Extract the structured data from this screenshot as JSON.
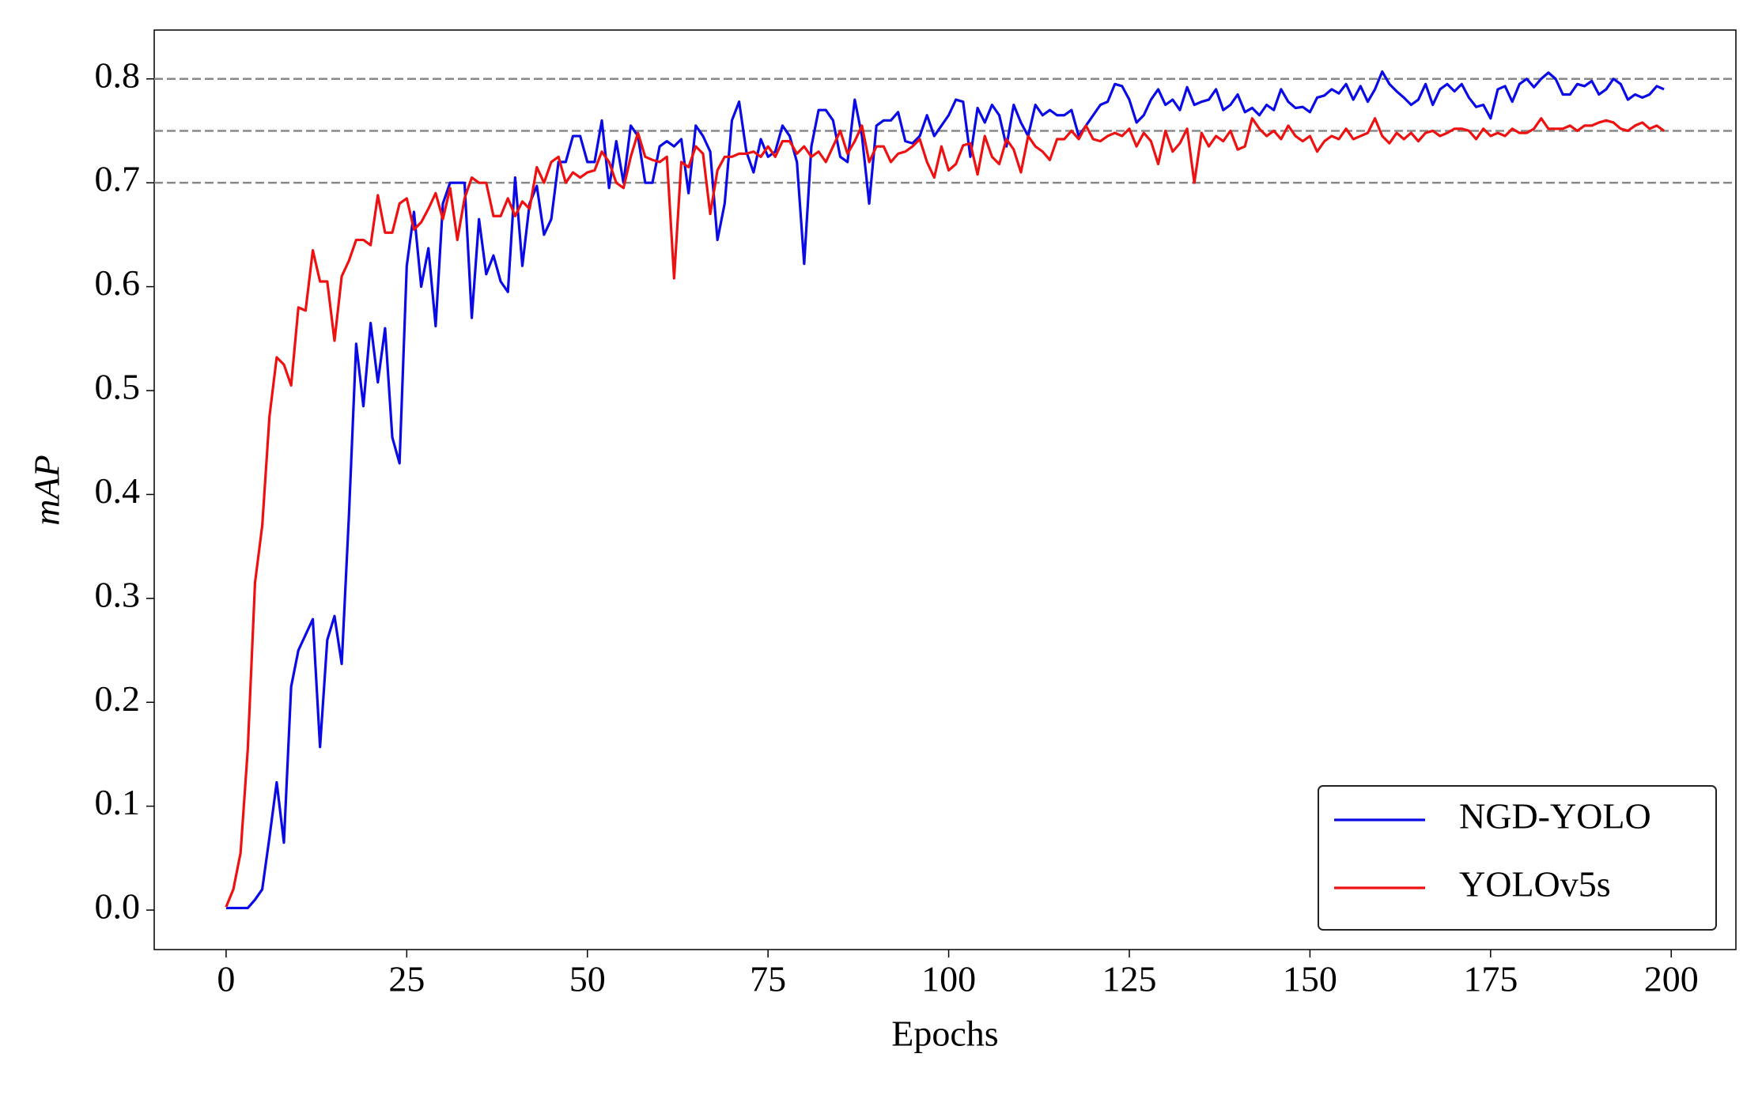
{
  "chart_data": {
    "type": "line",
    "xlabel": "Epochs",
    "ylabel": "mAP",
    "xlim": [
      -9.95,
      208.95
    ],
    "ylim": [
      -0.038,
      0.847
    ],
    "xticks": [
      0,
      25,
      50,
      75,
      100,
      125,
      150,
      175,
      200
    ],
    "yticks": [
      {
        "value": 0,
        "label": "0.0"
      },
      0.1,
      0.2,
      0.3,
      0.4,
      0.5,
      0.6,
      0.7,
      0.8
    ],
    "hlines": [
      0.7,
      0.75,
      0.8
    ],
    "legend_loc": "lower right",
    "x": [
      0,
      1,
      2,
      3,
      4,
      5,
      6,
      7,
      8,
      9,
      10,
      11,
      12,
      13,
      14,
      15,
      16,
      17,
      18,
      19,
      20,
      21,
      22,
      23,
      24,
      25,
      26,
      27,
      28,
      29,
      30,
      31,
      32,
      33,
      34,
      35,
      36,
      37,
      38,
      39,
      40,
      41,
      42,
      43,
      44,
      45,
      46,
      47,
      48,
      49,
      50,
      51,
      52,
      53,
      54,
      55,
      56,
      57,
      58,
      59,
      60,
      61,
      62,
      63,
      64,
      65,
      66,
      67,
      68,
      69,
      70,
      71,
      72,
      73,
      74,
      75,
      76,
      77,
      78,
      79,
      80,
      81,
      82,
      83,
      84,
      85,
      86,
      87,
      88,
      89,
      90,
      91,
      92,
      93,
      94,
      95,
      96,
      97,
      98,
      99,
      100,
      101,
      102,
      103,
      104,
      105,
      106,
      107,
      108,
      109,
      110,
      111,
      112,
      113,
      114,
      115,
      116,
      117,
      118,
      119,
      120,
      121,
      122,
      123,
      124,
      125,
      126,
      127,
      128,
      129,
      130,
      131,
      132,
      133,
      134,
      135,
      136,
      137,
      138,
      139,
      140,
      141,
      142,
      143,
      144,
      145,
      146,
      147,
      148,
      149,
      150,
      151,
      152,
      153,
      154,
      155,
      156,
      157,
      158,
      159,
      160,
      161,
      162,
      163,
      164,
      165,
      166,
      167,
      168,
      169,
      170,
      171,
      172,
      173,
      174,
      175,
      176,
      177,
      178,
      179,
      180,
      181,
      182,
      183,
      184,
      185,
      186,
      187,
      188,
      189,
      190,
      191,
      192,
      193,
      194,
      195,
      196,
      197,
      198,
      199
    ],
    "series": [
      {
        "name": "NGD-YOLO",
        "color": "#0a0ae6",
        "values": [
          0.002,
          0.002,
          0.002,
          0.002,
          0.01,
          0.02,
          0.07,
          0.123,
          0.065,
          0.215,
          0.25,
          0.265,
          0.28,
          0.157,
          0.26,
          0.283,
          0.237,
          0.38,
          0.545,
          0.485,
          0.565,
          0.508,
          0.56,
          0.455,
          0.43,
          0.62,
          0.672,
          0.6,
          0.637,
          0.562,
          0.68,
          0.7,
          0.7,
          0.7,
          0.57,
          0.665,
          0.612,
          0.63,
          0.605,
          0.595,
          0.705,
          0.62,
          0.68,
          0.697,
          0.65,
          0.665,
          0.72,
          0.72,
          0.745,
          0.745,
          0.72,
          0.72,
          0.76,
          0.695,
          0.74,
          0.7,
          0.755,
          0.745,
          0.7,
          0.7,
          0.735,
          0.74,
          0.735,
          0.742,
          0.69,
          0.755,
          0.745,
          0.73,
          0.645,
          0.68,
          0.76,
          0.778,
          0.73,
          0.71,
          0.742,
          0.725,
          0.73,
          0.755,
          0.745,
          0.72,
          0.622,
          0.735,
          0.77,
          0.77,
          0.76,
          0.725,
          0.72,
          0.78,
          0.745,
          0.68,
          0.755,
          0.76,
          0.76,
          0.768,
          0.74,
          0.738,
          0.745,
          0.765,
          0.745,
          0.755,
          0.765,
          0.78,
          0.778,
          0.725,
          0.772,
          0.758,
          0.775,
          0.765,
          0.735,
          0.775,
          0.758,
          0.745,
          0.775,
          0.765,
          0.77,
          0.765,
          0.765,
          0.77,
          0.745,
          0.755,
          0.765,
          0.775,
          0.778,
          0.795,
          0.793,
          0.78,
          0.758,
          0.765,
          0.78,
          0.79,
          0.775,
          0.78,
          0.77,
          0.792,
          0.775,
          0.778,
          0.78,
          0.79,
          0.77,
          0.775,
          0.785,
          0.768,
          0.772,
          0.765,
          0.775,
          0.77,
          0.79,
          0.778,
          0.772,
          0.773,
          0.768,
          0.782,
          0.784,
          0.79,
          0.786,
          0.795,
          0.78,
          0.793,
          0.778,
          0.79,
          0.807,
          0.795,
          0.788,
          0.782,
          0.775,
          0.78,
          0.795,
          0.775,
          0.79,
          0.795,
          0.788,
          0.795,
          0.782,
          0.773,
          0.775,
          0.762,
          0.79,
          0.793,
          0.778,
          0.795,
          0.8,
          0.792,
          0.8,
          0.806,
          0.8,
          0.785,
          0.785,
          0.795,
          0.793,
          0.798,
          0.785,
          0.79,
          0.8,
          0.795,
          0.78,
          0.785,
          0.782,
          0.785,
          0.793,
          0.79
        ]
      },
      {
        "name": "YOLOv5s",
        "color": "#ee1111",
        "values": [
          0.003,
          0.02,
          0.055,
          0.155,
          0.315,
          0.37,
          0.475,
          0.532,
          0.525,
          0.505,
          0.58,
          0.577,
          0.635,
          0.605,
          0.605,
          0.548,
          0.61,
          0.625,
          0.645,
          0.645,
          0.64,
          0.688,
          0.652,
          0.652,
          0.68,
          0.685,
          0.655,
          0.662,
          0.675,
          0.69,
          0.665,
          0.695,
          0.645,
          0.685,
          0.705,
          0.7,
          0.7,
          0.668,
          0.668,
          0.685,
          0.668,
          0.682,
          0.675,
          0.715,
          0.7,
          0.72,
          0.725,
          0.7,
          0.71,
          0.705,
          0.71,
          0.712,
          0.73,
          0.72,
          0.7,
          0.695,
          0.725,
          0.748,
          0.725,
          0.722,
          0.72,
          0.725,
          0.608,
          0.72,
          0.715,
          0.735,
          0.728,
          0.67,
          0.712,
          0.725,
          0.725,
          0.728,
          0.728,
          0.73,
          0.725,
          0.735,
          0.725,
          0.74,
          0.74,
          0.728,
          0.735,
          0.725,
          0.73,
          0.72,
          0.735,
          0.75,
          0.728,
          0.74,
          0.755,
          0.72,
          0.735,
          0.735,
          0.72,
          0.728,
          0.73,
          0.735,
          0.742,
          0.72,
          0.705,
          0.735,
          0.712,
          0.718,
          0.736,
          0.738,
          0.708,
          0.745,
          0.725,
          0.718,
          0.742,
          0.732,
          0.71,
          0.745,
          0.735,
          0.73,
          0.722,
          0.742,
          0.742,
          0.75,
          0.742,
          0.755,
          0.742,
          0.74,
          0.745,
          0.748,
          0.745,
          0.752,
          0.735,
          0.748,
          0.74,
          0.718,
          0.75,
          0.73,
          0.738,
          0.752,
          0.7,
          0.748,
          0.735,
          0.745,
          0.74,
          0.75,
          0.732,
          0.735,
          0.762,
          0.752,
          0.745,
          0.75,
          0.742,
          0.755,
          0.745,
          0.74,
          0.745,
          0.73,
          0.74,
          0.745,
          0.742,
          0.752,
          0.742,
          0.745,
          0.748,
          0.762,
          0.745,
          0.738,
          0.748,
          0.742,
          0.748,
          0.74,
          0.748,
          0.75,
          0.745,
          0.748,
          0.752,
          0.752,
          0.75,
          0.742,
          0.752,
          0.745,
          0.748,
          0.745,
          0.752,
          0.748,
          0.748,
          0.752,
          0.762,
          0.752,
          0.752,
          0.752,
          0.755,
          0.75,
          0.755,
          0.755,
          0.758,
          0.76,
          0.758,
          0.752,
          0.75,
          0.755,
          0.758,
          0.752,
          0.755,
          0.75
        ]
      }
    ]
  }
}
